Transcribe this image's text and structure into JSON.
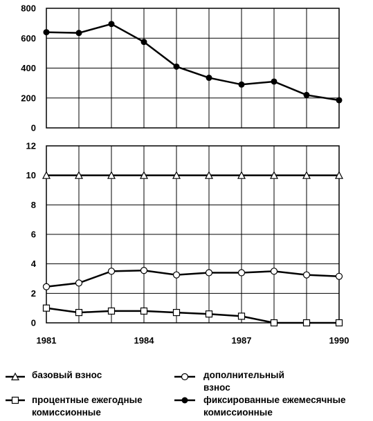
{
  "chart_data": [
    {
      "type": "line",
      "x": [
        1981,
        1982,
        1983,
        1984,
        1985,
        1986,
        1987,
        1988,
        1989,
        1990
      ],
      "ylim": [
        0,
        800
      ],
      "yticks": [
        "800",
        "600",
        "400",
        "200",
        "0"
      ],
      "series": [
        {
          "name": "фиксированные ежемесячные комиссионные",
          "marker": "filled-diamond",
          "values": [
            640,
            635,
            695,
            575,
            410,
            335,
            290,
            310,
            220,
            185
          ]
        }
      ]
    },
    {
      "type": "line",
      "x": [
        1981,
        1982,
        1983,
        1984,
        1985,
        1986,
        1987,
        1988,
        1989,
        1990
      ],
      "ylim": [
        0,
        12
      ],
      "yticks": [
        "12",
        "10",
        "8",
        "6",
        "4",
        "2",
        "0"
      ],
      "xtick_labels": [
        "1981",
        "1984",
        "1987",
        "1990"
      ],
      "series": [
        {
          "name": "базовый взнос",
          "marker": "open-triangle",
          "values": [
            10,
            10,
            10,
            10,
            10,
            10,
            10,
            10,
            10,
            10
          ]
        },
        {
          "name": "дополнительный взнос",
          "marker": "open-circle",
          "values": [
            2.45,
            2.7,
            3.5,
            3.55,
            3.25,
            3.4,
            3.4,
            3.5,
            3.25,
            3.15
          ]
        },
        {
          "name": "процентные ежегодные комиссионные",
          "marker": "open-square",
          "values": [
            1.0,
            0.7,
            0.8,
            0.8,
            0.7,
            0.6,
            0.45,
            0.0,
            0.0,
            0.0
          ]
        }
      ]
    }
  ],
  "legend": {
    "base_fee_line1": "базовый взнос",
    "additional_fee_line1": "дополнительный",
    "additional_fee_line2": "взнос",
    "percent_fee_line1": "процентные ежегодные",
    "percent_fee_line2": "комиссионные",
    "fixed_fee_line1": "фиксированные ежемесячные",
    "fixed_fee_line2": "комиссионные"
  }
}
